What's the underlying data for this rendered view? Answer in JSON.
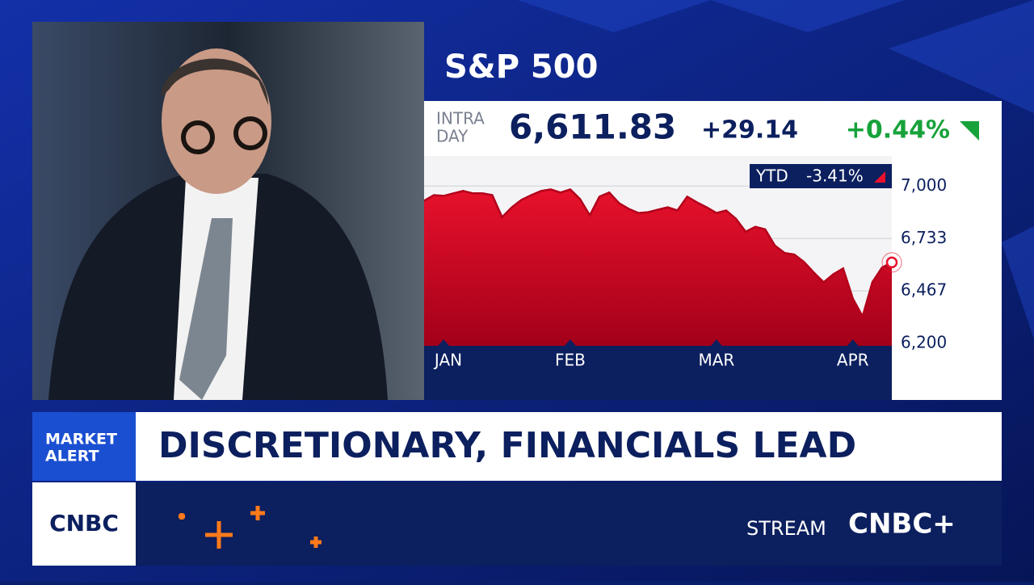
{
  "chart_data": {
    "type": "area",
    "title": "S&P 500",
    "categories": [
      null,
      null,
      "JAN",
      null,
      null,
      null,
      null,
      null,
      null,
      null,
      null,
      null,
      null,
      null,
      null,
      "FEB",
      null,
      null,
      null,
      null,
      null,
      null,
      null,
      null,
      null,
      null,
      null,
      null,
      null,
      null,
      "MAR",
      null,
      null,
      null,
      null,
      null,
      null,
      null,
      null,
      null,
      null,
      null,
      null,
      null,
      "APR",
      null,
      null,
      null,
      null
    ],
    "values": [
      6925,
      6954,
      6950,
      6963,
      6975,
      6963,
      6963,
      6954,
      6842,
      6892,
      6930,
      6954,
      6975,
      6983,
      6967,
      6983,
      6934,
      6851,
      6946,
      6967,
      6913,
      6884,
      6863,
      6867,
      6880,
      6892,
      6876,
      6946,
      6917,
      6892,
      6863,
      6876,
      6834,
      6768,
      6793,
      6780,
      6697,
      6660,
      6652,
      6614,
      6560,
      6511,
      6552,
      6581,
      6428,
      6337,
      6511,
      6586,
      6611.83
    ],
    "color": "#d90a24",
    "ylim": [
      6188,
      7153
    ],
    "yticks": [
      {
        "value": 7000,
        "label": "7,000"
      },
      {
        "value": 6733,
        "label": "6,733"
      },
      {
        "value": 6467,
        "label": "6,467"
      },
      {
        "value": 6200,
        "label": "6,200"
      }
    ],
    "grid": true
  },
  "quote": {
    "label": [
      "INTRA",
      "DAY"
    ],
    "last": "6,611.83",
    "change": "+29.14",
    "percent": "+0.44%",
    "ytd_label": "YTD",
    "ytd_value": "-3.41%"
  },
  "banner": {
    "tag": [
      "MARKET",
      "ALERT"
    ],
    "headline": "DISCRETIONARY, FINANCIALS LEAD"
  },
  "footer": {
    "logo": "CNBC",
    "stream": "STREAM",
    "stream_logo": "CNBC+"
  }
}
